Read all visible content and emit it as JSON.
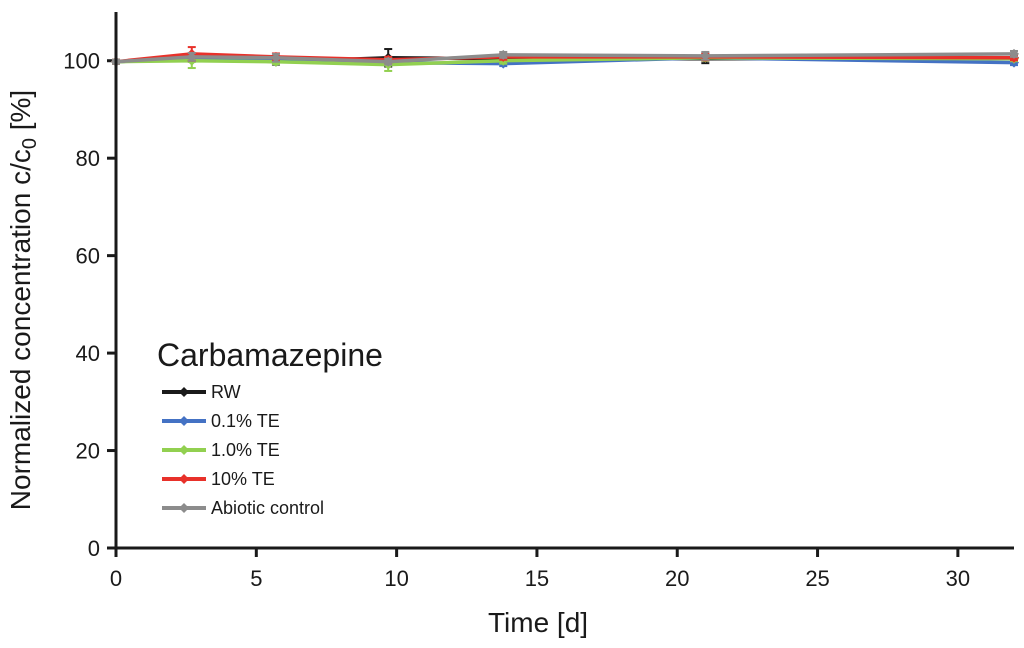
{
  "chart_data": {
    "type": "line",
    "title": "",
    "xlabel": "Time [d]",
    "ylabel": {
      "main": "Normalized concentration c/c",
      "subscript": "0",
      "unit": " [%]"
    },
    "xlim": [
      0,
      32
    ],
    "ylim": [
      0,
      110
    ],
    "xticks": [
      0,
      5,
      10,
      15,
      20,
      25,
      30
    ],
    "yticks": [
      0,
      20,
      40,
      60,
      80,
      100
    ],
    "grid": false,
    "legend": {
      "title": "Carbamazepine",
      "placement": "lower-left"
    },
    "x": [
      0,
      2.7,
      5.7,
      9.7,
      13.8,
      21,
      32
    ],
    "series": [
      {
        "name": "RW",
        "color": "#1a1a1a",
        "values": [
          99.8,
          100.6,
          99.8,
          100.6,
          100.4,
          100.4,
          100.6
        ],
        "errors": [
          0.4,
          0.8,
          0.6,
          1.8,
          0.6,
          0.9,
          0.5
        ]
      },
      {
        "name": "0.1% TE",
        "color": "#4472c4",
        "values": [
          99.8,
          100.6,
          100.4,
          99.6,
          99.4,
          100.6,
          99.6
        ],
        "errors": [
          0.4,
          0.6,
          0.5,
          0.5,
          0.5,
          0.6,
          0.5
        ]
      },
      {
        "name": "1.0% TE",
        "color": "#92d050",
        "values": [
          99.8,
          100.0,
          99.8,
          99.2,
          100.0,
          100.6,
          100.4
        ],
        "errors": [
          0.4,
          1.5,
          0.5,
          1.3,
          0.6,
          0.6,
          0.5
        ]
      },
      {
        "name": "10% TE",
        "color": "#e8312a",
        "values": [
          99.8,
          101.4,
          100.8,
          100.2,
          100.8,
          100.8,
          100.6
        ],
        "errors": [
          0.4,
          1.4,
          0.7,
          0.6,
          0.6,
          0.7,
          0.5
        ]
      },
      {
        "name": "Abiotic control",
        "color": "#8c8c8c",
        "values": [
          99.8,
          100.8,
          100.6,
          99.8,
          101.2,
          101.0,
          101.4
        ],
        "errors": [
          0.4,
          0.8,
          0.8,
          0.6,
          0.6,
          0.8,
          0.6
        ]
      }
    ]
  }
}
